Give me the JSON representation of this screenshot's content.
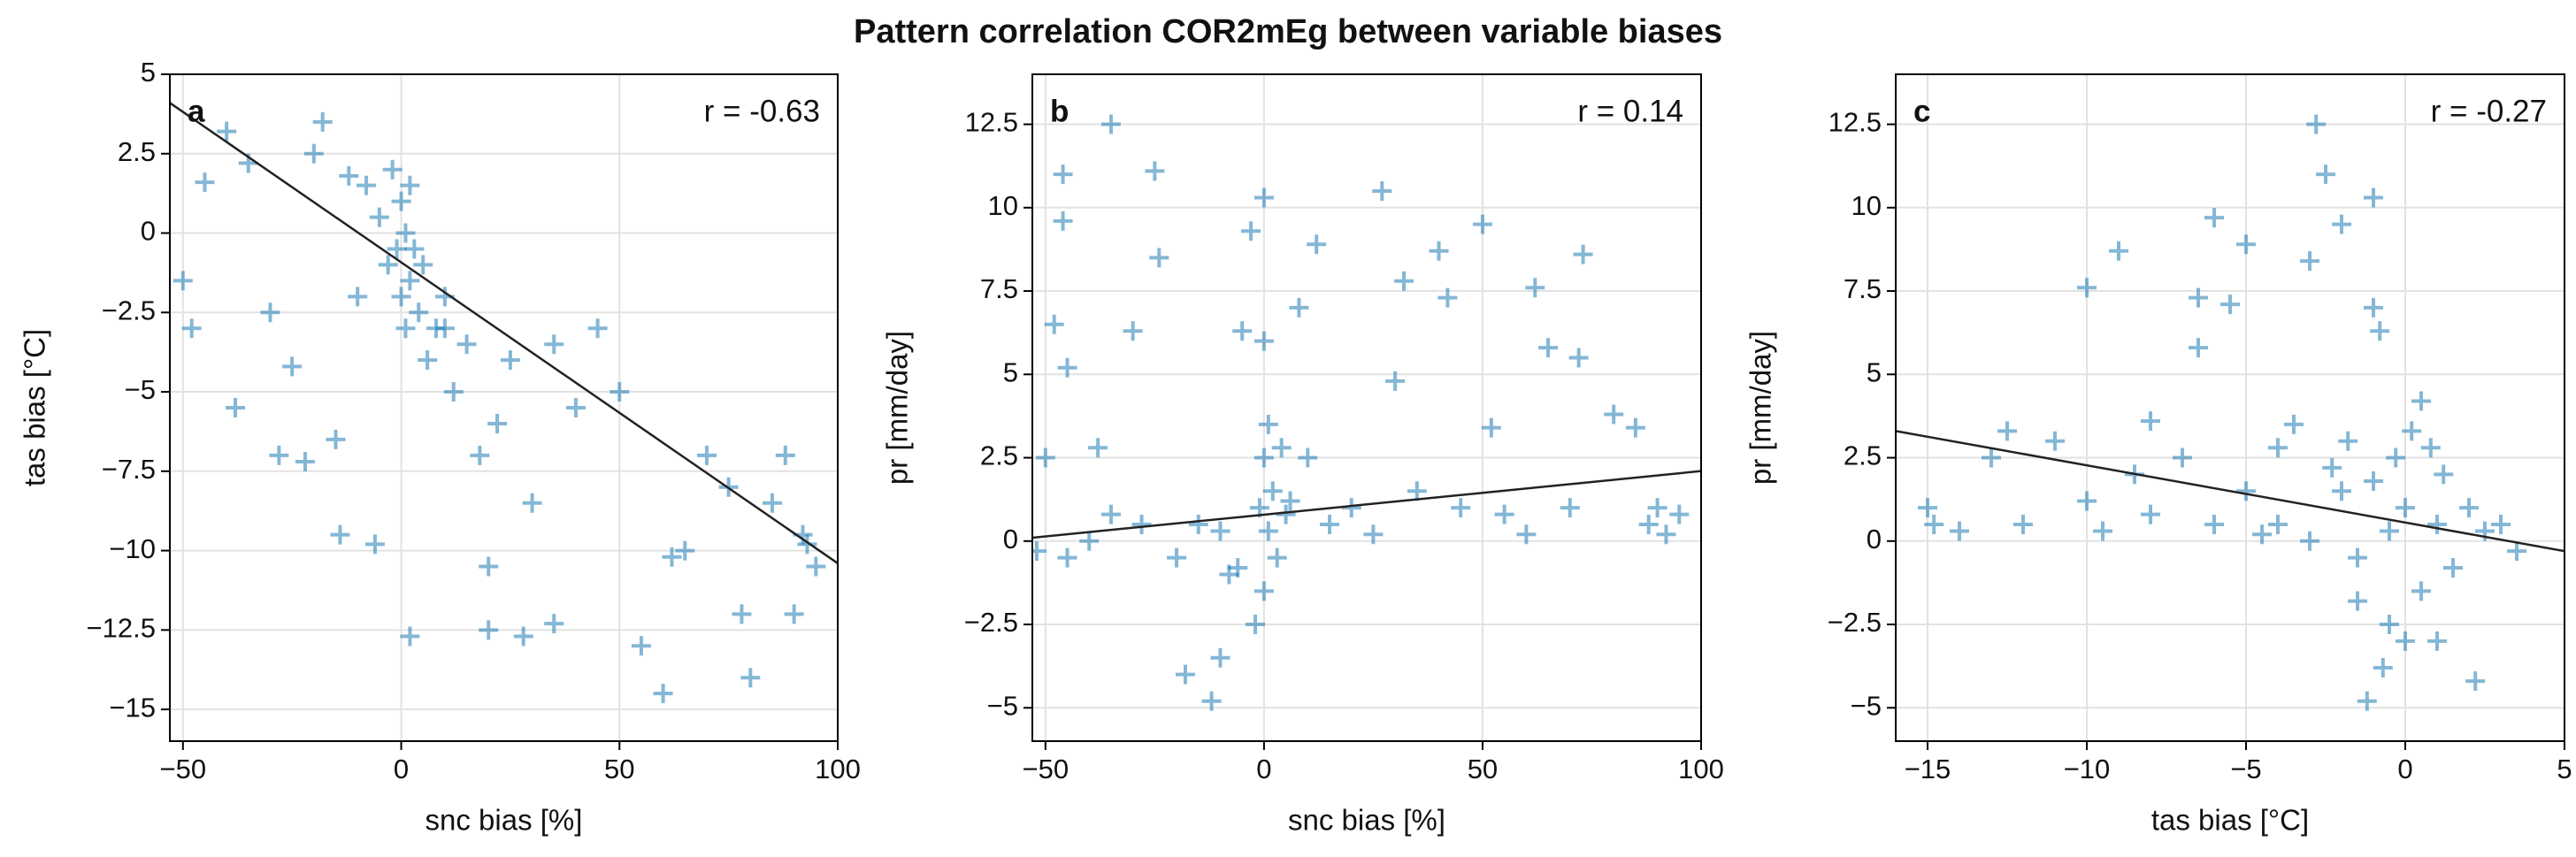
{
  "title": "Pattern correlation COR2mEg between variable biases",
  "chart_data": [
    {
      "type": "scatter",
      "label": "a",
      "annotation": "r = -0.63",
      "xlabel": "snc bias [%]",
      "ylabel": "tas bias [°C]",
      "xlim": [
        -53,
        100
      ],
      "ylim": [
        -16,
        5
      ],
      "xticks": [
        {
          "value": -50,
          "label": "−50"
        },
        0,
        50,
        100
      ],
      "yticks": [
        {
          "value": -15,
          "label": "−15"
        },
        {
          "value": -12.5,
          "label": "−12.5"
        },
        {
          "value": -10,
          "label": "−10"
        },
        {
          "value": -7.5,
          "label": "−7.5"
        },
        {
          "value": -5,
          "label": "−5"
        },
        {
          "value": -2.5,
          "label": "−2.5"
        },
        0,
        2.5,
        5
      ],
      "grid": true,
      "color": "#0a6fad",
      "marker": "+",
      "x": [
        -48,
        -45,
        -40,
        -35,
        -30,
        -25,
        -20,
        -18,
        -15,
        -12,
        -10,
        -8,
        -5,
        -3,
        -2,
        -1,
        0,
        0,
        1,
        1,
        2,
        2,
        3,
        4,
        5,
        6,
        8,
        10,
        12,
        15,
        18,
        20,
        22,
        25,
        28,
        30,
        35,
        40,
        45,
        50,
        55,
        60,
        65,
        70,
        75,
        80,
        85,
        88,
        90,
        92,
        95,
        -50,
        -38,
        -28,
        -22,
        -14,
        -6,
        2,
        10,
        20,
        35,
        62,
        78,
        93
      ],
      "values": [
        -3,
        1.6,
        3.2,
        2.2,
        -2.5,
        -4.2,
        2.5,
        3.5,
        -6.5,
        1.8,
        -2,
        1.5,
        0.5,
        -1,
        2,
        -0.5,
        1,
        -2,
        0,
        -3,
        1.5,
        -1.5,
        -0.5,
        -2.5,
        -1,
        -4,
        -3,
        -2,
        -5,
        -3.5,
        -7,
        -12.5,
        -6,
        -4,
        -12.7,
        -8.5,
        -3.5,
        -5.5,
        -3,
        -5,
        -13,
        -14.5,
        -10,
        -7,
        -8,
        -14,
        -8.5,
        -7,
        -12,
        -9.5,
        -10.5,
        -1.5,
        -5.5,
        -7,
        -7.2,
        -9.5,
        -9.8,
        -12.7,
        -3,
        -10.5,
        -12.3,
        -10.2,
        -12,
        -9.8
      ],
      "fit": {
        "x": [
          -53,
          100
        ],
        "values": [
          4.1,
          -10.4
        ]
      }
    },
    {
      "type": "scatter",
      "label": "b",
      "annotation": "r = 0.14",
      "xlabel": "snc bias [%]",
      "ylabel": "pr [mm/day]",
      "xlim": [
        -53,
        100
      ],
      "ylim": [
        -6,
        14
      ],
      "xticks": [
        {
          "value": -50,
          "label": "−50"
        },
        0,
        50,
        100
      ],
      "yticks": [
        {
          "value": -5,
          "label": "−5"
        },
        {
          "value": -2.5,
          "label": "−2.5"
        },
        0,
        2.5,
        5,
        7.5,
        10,
        12.5
      ],
      "grid": true,
      "color": "#0a6fad",
      "marker": "+",
      "x": [
        -50,
        -48,
        -46,
        -46,
        -45,
        -40,
        -38,
        -35,
        -30,
        -28,
        -25,
        -24,
        -20,
        -18,
        -15,
        -12,
        -10,
        -8,
        -5,
        -3,
        -2,
        -1,
        0,
        0,
        0,
        0,
        1,
        1,
        2,
        3,
        5,
        8,
        10,
        12,
        15,
        20,
        25,
        27,
        30,
        32,
        35,
        40,
        42,
        45,
        50,
        52,
        55,
        60,
        62,
        65,
        70,
        73,
        72,
        80,
        85,
        88,
        90,
        92,
        95,
        -52,
        -45,
        -35,
        -10,
        -6,
        4,
        6
      ],
      "values": [
        2.5,
        6.5,
        11,
        9.6,
        5.2,
        0,
        2.8,
        12.5,
        6.3,
        0.5,
        11.1,
        8.5,
        -0.5,
        -4,
        0.5,
        -4.8,
        -3.5,
        -1,
        6.3,
        9.3,
        -2.5,
        1,
        2.5,
        -1.5,
        10.3,
        6,
        0.3,
        3.5,
        1.5,
        -0.5,
        0.8,
        7,
        2.5,
        8.9,
        0.5,
        1,
        0.2,
        10.5,
        4.8,
        7.8,
        1.5,
        8.7,
        7.3,
        1,
        9.5,
        3.4,
        0.8,
        0.2,
        7.6,
        5.8,
        1,
        8.6,
        5.5,
        3.8,
        3.4,
        0.5,
        1,
        0.2,
        0.8,
        -0.3,
        -0.5,
        0.8,
        0.3,
        -0.8,
        2.8,
        1.2
      ],
      "fit": {
        "x": [
          -53,
          100
        ],
        "values": [
          0.1,
          2.1
        ]
      }
    },
    {
      "type": "scatter",
      "label": "c",
      "annotation": "r = -0.27",
      "xlabel": "tas bias [°C]",
      "ylabel": "pr [mm/day]",
      "xlim": [
        -16,
        5
      ],
      "ylim": [
        -6,
        14
      ],
      "xticks": [
        {
          "value": -15,
          "label": "−15"
        },
        {
          "value": -10,
          "label": "−10"
        },
        {
          "value": -5,
          "label": "−5"
        },
        0,
        5
      ],
      "yticks": [
        {
          "value": -5,
          "label": "−5"
        },
        {
          "value": -2.5,
          "label": "−2.5"
        },
        0,
        2.5,
        5,
        7.5,
        10,
        12.5
      ],
      "grid": true,
      "color": "#0a6fad",
      "marker": "+",
      "x": [
        -15,
        -14,
        -13,
        -12.5,
        -12,
        -11,
        -10,
        -10,
        -9.5,
        -9,
        -8,
        -8,
        -7,
        -6.5,
        -6.5,
        -6,
        -6,
        -5.5,
        -5,
        -5,
        -4.5,
        -4,
        -3.5,
        -3,
        -3,
        -2.8,
        -2.5,
        -2,
        -2,
        -1.8,
        -1.5,
        -1,
        -1,
        -1,
        -0.8,
        -0.5,
        -0.5,
        -0.3,
        0,
        0,
        0.2,
        0.5,
        0.5,
        1,
        1,
        1.2,
        1.5,
        2,
        2.2,
        2.5,
        3,
        3.5,
        -1.2,
        -0.7,
        -1.5,
        -14.8,
        -8.5,
        -4,
        -2.3,
        0.8
      ],
      "values": [
        1,
        0.3,
        2.5,
        3.3,
        0.5,
        3,
        1.2,
        7.6,
        0.3,
        8.7,
        3.6,
        0.8,
        2.5,
        7.3,
        5.8,
        9.7,
        0.5,
        7.1,
        8.9,
        1.5,
        0.2,
        2.8,
        3.5,
        8.4,
        0,
        12.5,
        11,
        9.5,
        1.5,
        3,
        -0.5,
        10.3,
        7,
        1.8,
        6.3,
        0.3,
        -2.5,
        2.5,
        -3,
        1,
        3.3,
        4.2,
        -1.5,
        0.5,
        -3,
        2,
        -0.8,
        1,
        -4.2,
        0.3,
        0.5,
        -0.3,
        -4.8,
        -3.8,
        -1.8,
        0.5,
        2,
        0.5,
        2.2,
        2.8
      ],
      "fit": {
        "x": [
          -16,
          5
        ],
        "values": [
          3.3,
          -0.3
        ]
      }
    }
  ]
}
